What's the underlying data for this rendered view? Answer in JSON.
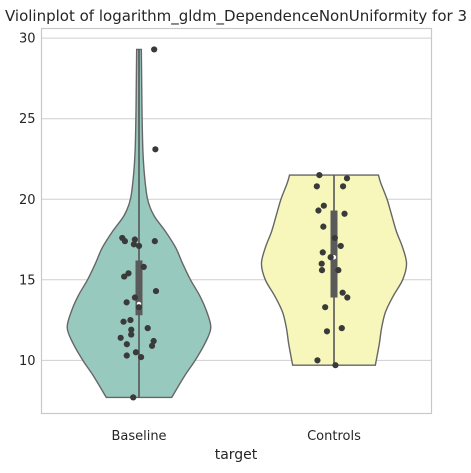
{
  "chart_data": {
    "type": "violin",
    "title": "Violinplot of logarithm_gldm_DependenceNonUniformity for 3",
    "xlabel": "target",
    "ylabel": "",
    "ylim": [
      6.7,
      30.6
    ],
    "yticks": [
      10,
      15,
      20,
      25,
      30
    ],
    "grid": true,
    "categories": [
      "Baseline",
      "Controls"
    ],
    "colors": [
      "#98c9bf",
      "#f7f7bc"
    ],
    "series": [
      {
        "category": "Baseline",
        "range": [
          7.7,
          29.3
        ],
        "q1": 12.8,
        "median": 13.5,
        "q3": 16.2,
        "whisker": [
          7.7,
          29.3
        ],
        "density": [
          [
            7.7,
            0.42
          ],
          [
            9.0,
            0.58
          ],
          [
            10.0,
            0.72
          ],
          [
            11.0,
            0.84
          ],
          [
            12.0,
            0.92
          ],
          [
            13.0,
            0.87
          ],
          [
            14.0,
            0.78
          ],
          [
            15.0,
            0.66
          ],
          [
            16.0,
            0.56
          ],
          [
            17.0,
            0.47
          ],
          [
            18.0,
            0.34
          ],
          [
            19.0,
            0.19
          ],
          [
            20.0,
            0.11
          ],
          [
            21.5,
            0.07
          ],
          [
            23.0,
            0.05
          ],
          [
            25.0,
            0.04
          ],
          [
            27.0,
            0.035
          ],
          [
            29.3,
            0.03
          ]
        ],
        "points": [
          29.3,
          23.1,
          17.6,
          17.5,
          17.4,
          17.4,
          17.2,
          17.1,
          15.8,
          15.4,
          15.2,
          14.3,
          13.9,
          13.6,
          13.3,
          12.5,
          12.4,
          12.0,
          11.9,
          11.6,
          11.4,
          11.2,
          11.0,
          10.9,
          10.5,
          10.3,
          10.2,
          7.7
        ]
      },
      {
        "category": "Controls",
        "range": [
          9.7,
          21.5
        ],
        "q1": 13.9,
        "median": 16.4,
        "q3": 19.3,
        "whisker": [
          9.7,
          21.5
        ],
        "density": [
          [
            9.7,
            0.53
          ],
          [
            11.0,
            0.58
          ],
          [
            12.0,
            0.61
          ],
          [
            13.0,
            0.66
          ],
          [
            14.0,
            0.76
          ],
          [
            15.0,
            0.88
          ],
          [
            16.0,
            0.93
          ],
          [
            17.0,
            0.88
          ],
          [
            18.0,
            0.8
          ],
          [
            19.0,
            0.74
          ],
          [
            20.0,
            0.68
          ],
          [
            21.0,
            0.6
          ],
          [
            21.5,
            0.57
          ]
        ],
        "points": [
          21.5,
          21.3,
          20.8,
          20.8,
          19.6,
          19.3,
          19.1,
          18.3,
          17.6,
          17.1,
          16.7,
          16.4,
          16.0,
          15.6,
          15.6,
          14.2,
          13.9,
          13.3,
          12.0,
          11.8,
          10.0,
          9.7
        ]
      }
    ]
  }
}
